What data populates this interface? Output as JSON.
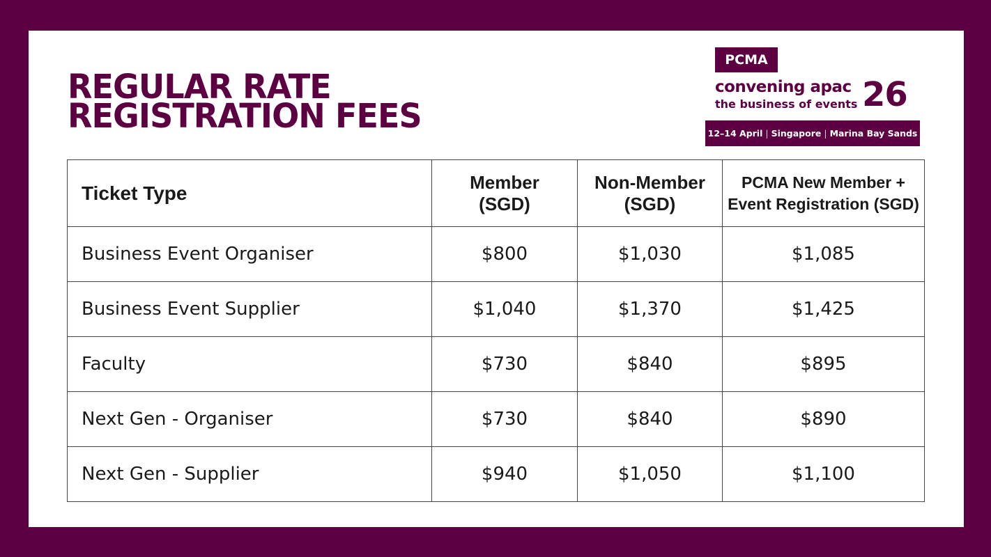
{
  "title": {
    "line1": "REGULAR RATE",
    "line2": "REGISTRATION FEES"
  },
  "logo": {
    "brand": "PCMA",
    "line1": "convening apac",
    "line2": "the business of events",
    "number": "26",
    "dates": "12–14 April",
    "city": "Singapore",
    "venue": "Marina Bay Sands",
    "separator": "|"
  },
  "table": {
    "headers": {
      "ticket_type": "Ticket Type",
      "member": "Member (SGD)",
      "non_member": "Non-Member (SGD)",
      "new_member": "PCMA New Member + Event Registration (SGD)"
    },
    "rows": [
      {
        "type": "Business Event Organiser",
        "member": "$800",
        "non_member": "$1,030",
        "new_member": "$1,085"
      },
      {
        "type": "Business Event Supplier",
        "member": "$1,040",
        "non_member": "$1,370",
        "new_member": "$1,425"
      },
      {
        "type": "Faculty",
        "member": "$730",
        "non_member": "$840",
        "new_member": "$895"
      },
      {
        "type": "Next Gen - Organiser",
        "member": "$730",
        "non_member": "$840",
        "new_member": "$890"
      },
      {
        "type": "Next Gen - Supplier",
        "member": "$940",
        "non_member": "$1,050",
        "new_member": "$1,100"
      }
    ]
  },
  "colors": {
    "brand": "#5c0042",
    "background": "#ffffff",
    "text": "#1a1a1a"
  }
}
